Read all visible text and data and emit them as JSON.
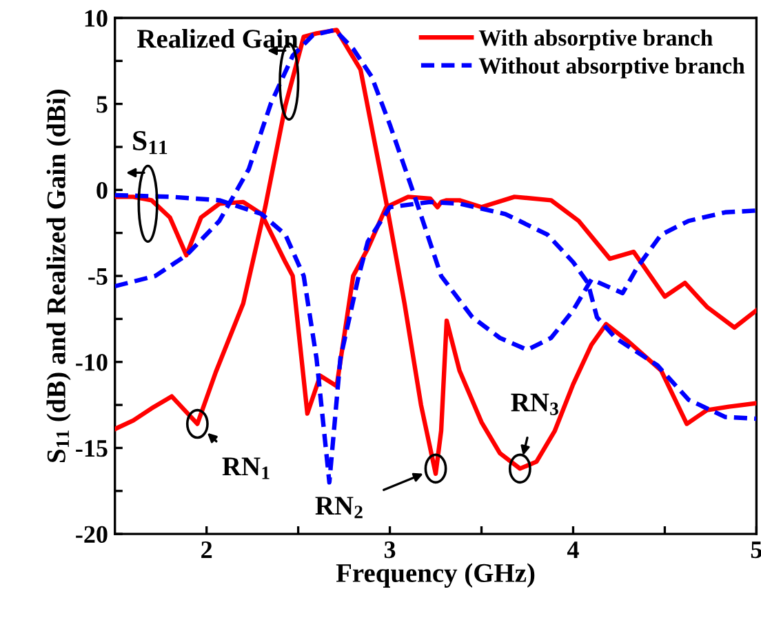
{
  "chart_data": {
    "type": "line",
    "xlabel": "Frequency (GHz)",
    "ylabel": "S$_{11}$ (dB) and Realized Gain (dBi)",
    "xlim": [
      1.5,
      5
    ],
    "ylim": [
      -20,
      10
    ],
    "xticks": [
      2,
      {
        "value": 2.5,
        "label": null
      },
      3,
      {
        "value": 3.5,
        "label": null
      },
      4,
      {
        "value": 4.5,
        "label": null
      },
      5
    ],
    "yticks": [
      -20,
      {
        "value": -17.5,
        "label": null
      },
      -15,
      {
        "value": -12.5,
        "label": null
      },
      -10,
      {
        "value": -7.5,
        "label": null
      },
      -5,
      {
        "value": -2.5,
        "label": null
      },
      0,
      {
        "value": 2.5,
        "label": null
      },
      5,
      {
        "value": 7.5,
        "label": null
      },
      10
    ],
    "grid": false,
    "legend": "top right",
    "marker": "none",
    "series": [
      {
        "name": "With absorptive branch",
        "color": "#ff0000",
        "line_style": "solid",
        "x": [
          1.5,
          1.6,
          1.7,
          1.81,
          1.88,
          1.95,
          2.05,
          2.2,
          2.32,
          2.43,
          2.53,
          2.6,
          2.71,
          2.84,
          2.98,
          3.08,
          3.17,
          3.25,
          3.28,
          3.31,
          3.38,
          3.5,
          3.6,
          3.71,
          3.8,
          3.9,
          4.0,
          4.1,
          4.18,
          4.3,
          4.48,
          4.62,
          4.73,
          4.85,
          5.0
        ],
        "values": [
          -13.9,
          -13.4,
          -12.7,
          -12.0,
          -12.8,
          -13.6,
          -10.6,
          -6.6,
          -1.0,
          4.9,
          8.9,
          9.1,
          9.3,
          7.0,
          -0.7,
          -6.6,
          -12.5,
          -16.5,
          -14.0,
          -7.6,
          -10.5,
          -13.5,
          -15.3,
          -16.2,
          -15.8,
          -14.0,
          -11.3,
          -9.0,
          -7.8,
          -8.8,
          -10.5,
          -13.6,
          -12.8,
          -12.6,
          -12.4
        ]
      },
      {
        "color": "#ff0000",
        "line_style": "solid",
        "x": [
          1.5,
          1.6,
          1.7,
          1.8,
          1.89,
          1.97,
          2.07,
          2.2,
          2.3,
          2.43,
          2.47,
          2.55,
          2.62,
          2.71,
          2.8,
          2.88,
          2.98,
          3.1,
          3.22,
          3.26,
          3.28,
          3.31,
          3.38,
          3.5,
          3.68,
          3.88,
          4.03,
          4.2,
          4.33,
          4.5,
          4.61,
          4.73,
          4.88,
          5.0
        ],
        "values": [
          -0.4,
          -0.4,
          -0.6,
          -1.6,
          -3.8,
          -1.6,
          -0.8,
          -0.7,
          -1.4,
          -4.2,
          -5.0,
          -13.0,
          -10.8,
          -11.4,
          -5.0,
          -3.4,
          -1.0,
          -0.4,
          -0.5,
          -1.0,
          -0.7,
          -0.6,
          -0.6,
          -1.0,
          -0.4,
          -0.6,
          -1.8,
          -4.0,
          -3.6,
          -6.2,
          -5.4,
          -6.8,
          -8.0,
          -7.0
        ]
      },
      {
        "name": "Without absorptive branch",
        "color": "#0000ff",
        "line_style": "dashed",
        "x": [
          1.5,
          1.72,
          1.89,
          2.07,
          2.23,
          2.35,
          2.47,
          2.58,
          2.7,
          2.8,
          2.9,
          3.0,
          3.13,
          3.28,
          3.45,
          3.6,
          3.75,
          3.88,
          4.0,
          4.1,
          4.27,
          4.35,
          4.48,
          4.63,
          4.83,
          5.0
        ],
        "values": [
          -5.6,
          -5.0,
          -3.8,
          -1.8,
          1.2,
          5.0,
          7.8,
          9.0,
          9.3,
          8.2,
          6.6,
          3.8,
          -0.2,
          -5.0,
          -7.4,
          -8.6,
          -9.3,
          -8.6,
          -7.0,
          -5.2,
          -6.0,
          -4.5,
          -2.6,
          -1.8,
          -1.3,
          -1.2
        ]
      },
      {
        "color": "#0000ff",
        "line_style": "dashed",
        "x": [
          1.5,
          1.8,
          2.07,
          2.3,
          2.43,
          2.53,
          2.6,
          2.67,
          2.73,
          2.83,
          2.88,
          3.0,
          3.22,
          3.38,
          3.63,
          3.86,
          4.0,
          4.08,
          4.13,
          4.23,
          4.46,
          4.63,
          4.83,
          5.0
        ],
        "values": [
          -0.3,
          -0.4,
          -0.6,
          -1.4,
          -2.6,
          -5.0,
          -9.8,
          -17.0,
          -9.8,
          -5.0,
          -3.0,
          -1.0,
          -0.7,
          -0.8,
          -1.4,
          -2.6,
          -4.2,
          -5.4,
          -7.4,
          -8.6,
          -10.2,
          -12.2,
          -13.2,
          -13.3
        ]
      }
    ],
    "annotations": [
      {
        "text": "Realized Gain",
        "x": 2.45,
        "y": 6.3
      },
      {
        "text": "S$_{11}$",
        "x": 1.68,
        "y": -0.8
      },
      {
        "text": "RN$_{1}$",
        "x": 1.95,
        "y": -13.6
      },
      {
        "text": "RN$_{2}$",
        "x": 3.25,
        "y": -16.2
      },
      {
        "text": "RN$_{3}$",
        "x": 3.71,
        "y": -16.2
      }
    ]
  }
}
